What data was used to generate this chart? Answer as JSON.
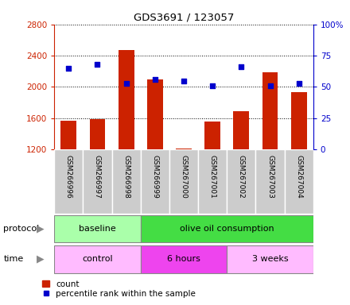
{
  "title": "GDS3691 / 123057",
  "samples": [
    "GSM266996",
    "GSM266997",
    "GSM266998",
    "GSM266999",
    "GSM267000",
    "GSM267001",
    "GSM267002",
    "GSM267003",
    "GSM267004"
  ],
  "counts": [
    1565,
    1590,
    2470,
    2095,
    1215,
    1555,
    1685,
    2185,
    1930
  ],
  "percentile_ranks": [
    65,
    68,
    53,
    56,
    55,
    51,
    66,
    51,
    53
  ],
  "ylim_left": [
    1200,
    2800
  ],
  "ylim_right": [
    0,
    100
  ],
  "yticks_left": [
    1200,
    1600,
    2000,
    2400,
    2800
  ],
  "yticks_right": [
    0,
    25,
    50,
    75,
    100
  ],
  "bar_color": "#cc2200",
  "dot_color": "#0000cc",
  "bar_bottom": 1200,
  "protocol_groups": [
    {
      "label": "baseline",
      "start": 0,
      "end": 3,
      "color": "#aaffaa"
    },
    {
      "label": "olive oil consumption",
      "start": 3,
      "end": 9,
      "color": "#44dd44"
    }
  ],
  "time_groups": [
    {
      "label": "control",
      "start": 0,
      "end": 3,
      "color": "#ffbbff"
    },
    {
      "label": "6 hours",
      "start": 3,
      "end": 6,
      "color": "#ee44ee"
    },
    {
      "label": "3 weeks",
      "start": 6,
      "end": 9,
      "color": "#ffbbff"
    }
  ],
  "legend_count_label": "count",
  "legend_pct_label": "percentile rank within the sample",
  "label_row_bg": "#cccccc"
}
